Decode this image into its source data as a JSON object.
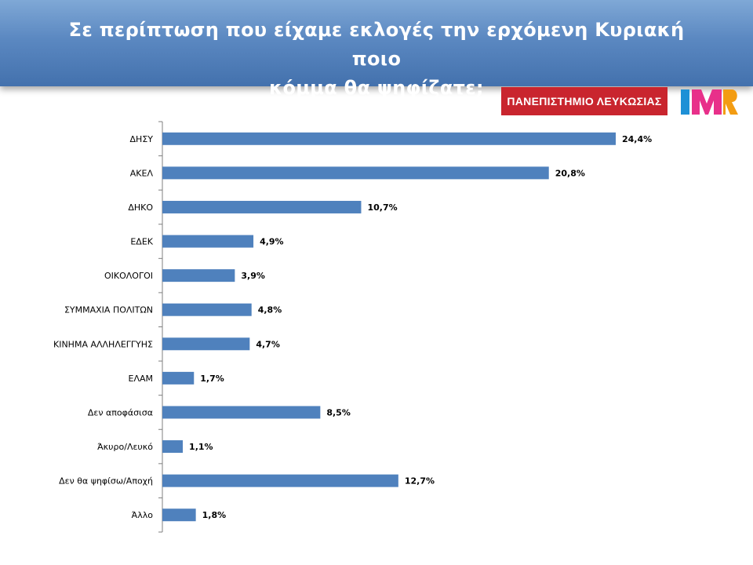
{
  "header": {
    "title_line1": "Σε περίπτωση που είχαμε εκλογές την ερχόμενη Κυριακή ποιο",
    "title_line2": "κόμμα θα ψηφίζατε;"
  },
  "logos": {
    "university": "ΠΑΝΕΠΙΣΤΗΜΙΟ ΛΕΥΚΩΣΙΑΣ",
    "imr": "IMR",
    "imr_colors": [
      "#1e90d6",
      "#e8308a",
      "#f39c12"
    ]
  },
  "chart_data": {
    "type": "bar",
    "orientation": "horizontal",
    "categories": [
      "ΔΗΣΥ",
      "ΑΚΕΛ",
      "ΔΗΚΟ",
      "ΕΔΕΚ",
      "ΟΙΚΟΛΟΓΟΙ",
      "ΣΥΜΜΑΧΙΑ ΠΟΛΙΤΩΝ",
      "ΚΙΝΗΜΑ ΑΛΛΗΛΕΓΓΥΗΣ",
      "ΕΛΑΜ",
      "Δεν αποφάσισα",
      "Άκυρο/Λευκό",
      "Δεν θα ψηφίσω/Αποχή",
      "Άλλο"
    ],
    "values": [
      24.4,
      20.8,
      10.7,
      4.9,
      3.9,
      4.8,
      4.7,
      1.7,
      8.5,
      1.1,
      12.7,
      1.8
    ],
    "labels": [
      "24,4%",
      "20,8%",
      "10,7%",
      "4,9%",
      "3,9%",
      "4,8%",
      "4,7%",
      "1,7%",
      "8,5%",
      "1,1%",
      "12,7%",
      "1,8%"
    ],
    "xlim": [
      0,
      25
    ],
    "grid": false,
    "bar_color": "#4f81bd"
  }
}
